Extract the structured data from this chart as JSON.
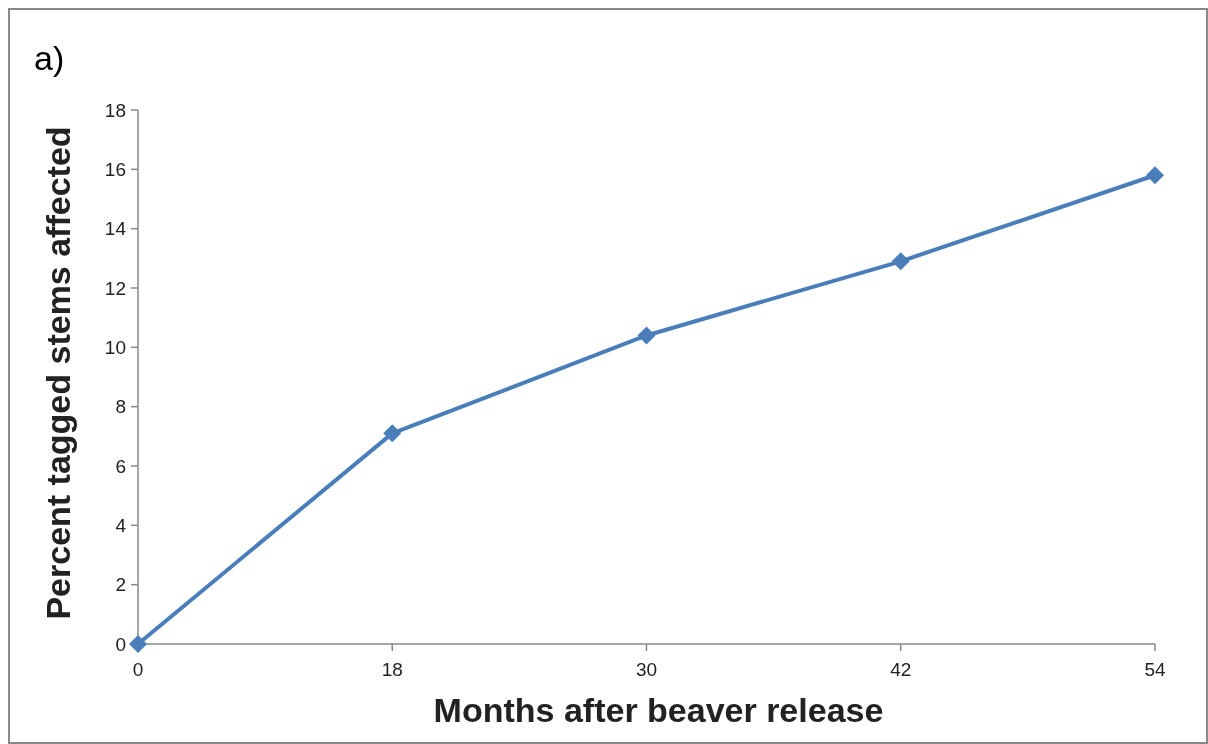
{
  "chart_data": {
    "type": "line",
    "title": "a)",
    "xlabel": "Months after beaver release",
    "ylabel": "Percent tagged stems affected",
    "categories": [
      "0",
      "18",
      "30",
      "42",
      "54"
    ],
    "series": [
      {
        "color": "#4a7ebb",
        "values": [
          0,
          7.1,
          10.4,
          12.9,
          15.8
        ]
      }
    ],
    "ylim": [
      0,
      18
    ],
    "yticks": [
      0,
      2,
      4,
      6,
      8,
      10,
      12,
      14,
      16,
      18
    ],
    "grid": false,
    "marker": "diamond",
    "line_style": "solid"
  }
}
